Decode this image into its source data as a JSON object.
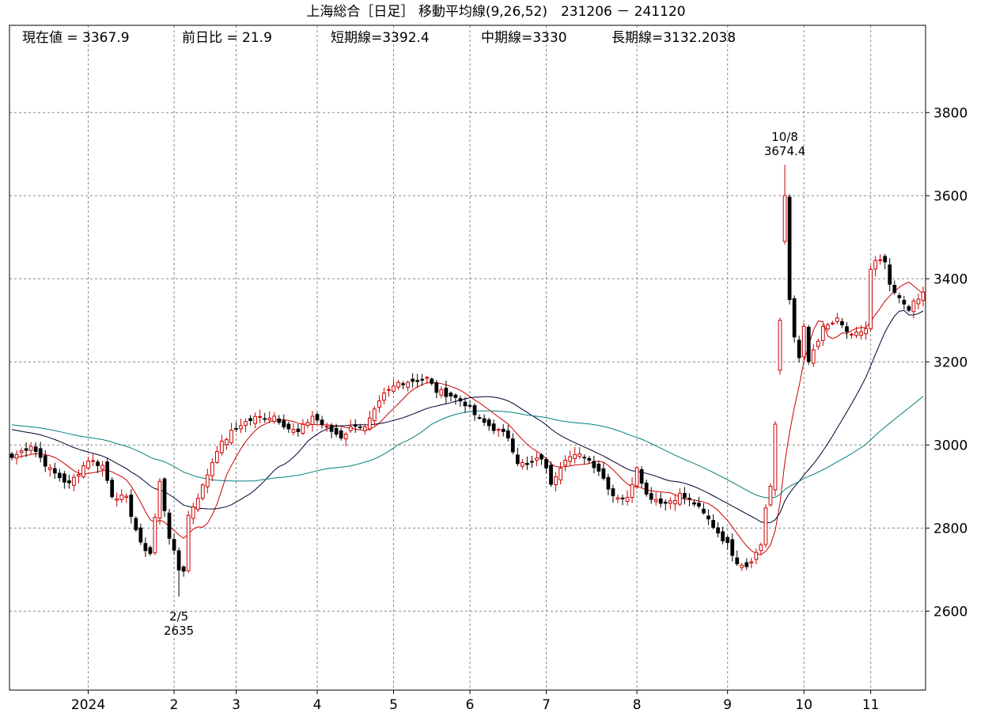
{
  "chart_data": {
    "type": "candlestick",
    "title": "上海総合［日足］ 移動平均線(9,26,52)　231206 － 241120",
    "info": {
      "current": "現在値 = 3367.9",
      "change": "前日比 = 21.9",
      "short_ma": "短期線=3392.4",
      "mid_ma": "中期線=3330",
      "long_ma": "長期線=3132.2038"
    },
    "y_axis": {
      "min": 2410,
      "max": 4010,
      "ticks": [
        2600,
        2800,
        3000,
        3200,
        3400,
        3600,
        3800
      ]
    },
    "x_axis": {
      "labels": [
        {
          "label": "2024",
          "index": 16
        },
        {
          "label": "2",
          "index": 34
        },
        {
          "label": "3",
          "index": 47
        },
        {
          "label": "4",
          "index": 64
        },
        {
          "label": "5",
          "index": 80
        },
        {
          "label": "6",
          "index": 96
        },
        {
          "label": "7",
          "index": 112
        },
        {
          "label": "8",
          "index": 131
        },
        {
          "label": "9",
          "index": 150
        },
        {
          "label": "10",
          "index": 166
        },
        {
          "label": "11",
          "index": 180
        }
      ],
      "count": 192
    },
    "ohlc_keypoints": [
      [
        0,
        2970
      ],
      [
        4,
        3000
      ],
      [
        8,
        2940
      ],
      [
        12,
        2905
      ],
      [
        16,
        2965
      ],
      [
        19,
        2950
      ],
      [
        21,
        2880
      ],
      [
        24,
        2870
      ],
      [
        27,
        2760
      ],
      [
        29,
        2740
      ],
      [
        31,
        2910
      ],
      [
        33,
        2780
      ],
      [
        35,
        2700
      ],
      [
        36,
        2700
      ],
      [
        37,
        2830
      ],
      [
        40,
        2900
      ],
      [
        43,
        2990
      ],
      [
        46,
        3030
      ],
      [
        48,
        3050
      ],
      [
        51,
        3065
      ],
      [
        55,
        3070
      ],
      [
        58,
        3040
      ],
      [
        60,
        3030
      ],
      [
        63,
        3070
      ],
      [
        66,
        3040
      ],
      [
        69,
        3020
      ],
      [
        72,
        3050
      ],
      [
        74,
        3040
      ],
      [
        78,
        3120
      ],
      [
        81,
        3150
      ],
      [
        84,
        3155
      ],
      [
        87,
        3160
      ],
      [
        89,
        3130
      ],
      [
        92,
        3120
      ],
      [
        95,
        3100
      ],
      [
        98,
        3060
      ],
      [
        101,
        3040
      ],
      [
        104,
        3020
      ],
      [
        106,
        2960
      ],
      [
        108,
        2950
      ],
      [
        111,
        2970
      ],
      [
        113,
        2910
      ],
      [
        116,
        2970
      ],
      [
        120,
        2975
      ],
      [
        123,
        2940
      ],
      [
        126,
        2880
      ],
      [
        129,
        2870
      ],
      [
        131,
        2950
      ],
      [
        133,
        2880
      ],
      [
        137,
        2860
      ],
      [
        140,
        2880
      ],
      [
        143,
        2860
      ],
      [
        146,
        2820
      ],
      [
        148,
        2790
      ],
      [
        150,
        2760
      ],
      [
        152,
        2720
      ],
      [
        154,
        2710
      ],
      [
        156,
        2740
      ],
      [
        157,
        2760
      ],
      [
        158,
        2850
      ],
      [
        159,
        2900
      ],
      [
        160,
        3050
      ],
      [
        161,
        3300
      ],
      [
        162,
        3600
      ],
      [
        163,
        3350
      ],
      [
        164,
        3260
      ],
      [
        165,
        3210
      ],
      [
        166,
        3280
      ],
      [
        167,
        3200
      ],
      [
        168,
        3230
      ],
      [
        170,
        3280
      ],
      [
        173,
        3300
      ],
      [
        176,
        3260
      ],
      [
        179,
        3280
      ],
      [
        180,
        3420
      ],
      [
        181,
        3440
      ],
      [
        183,
        3440
      ],
      [
        184,
        3380
      ],
      [
        186,
        3350
      ],
      [
        188,
        3330
      ],
      [
        189,
        3340
      ],
      [
        190,
        3350
      ],
      [
        191,
        3367.9
      ]
    ],
    "annotations": [
      {
        "date": "2/5",
        "value": "2635",
        "index": 35,
        "price": 2635,
        "position": "below"
      },
      {
        "date": "10/8",
        "value": "3674.4",
        "index": 162,
        "price": 3674.4,
        "position": "above"
      }
    ],
    "series": [
      {
        "key": "short",
        "period": 9,
        "color": "#cc0000"
      },
      {
        "key": "mid",
        "period": 26,
        "color": "#000033"
      },
      {
        "key": "long",
        "period": 52,
        "color": "#00807f"
      }
    ],
    "ma_seed": {
      "mid": 3040,
      "long": 3050
    },
    "colors": {
      "up": "#cc0000",
      "down": "#000000",
      "grid": "#888888",
      "frame": "#000000"
    },
    "grid": true
  }
}
